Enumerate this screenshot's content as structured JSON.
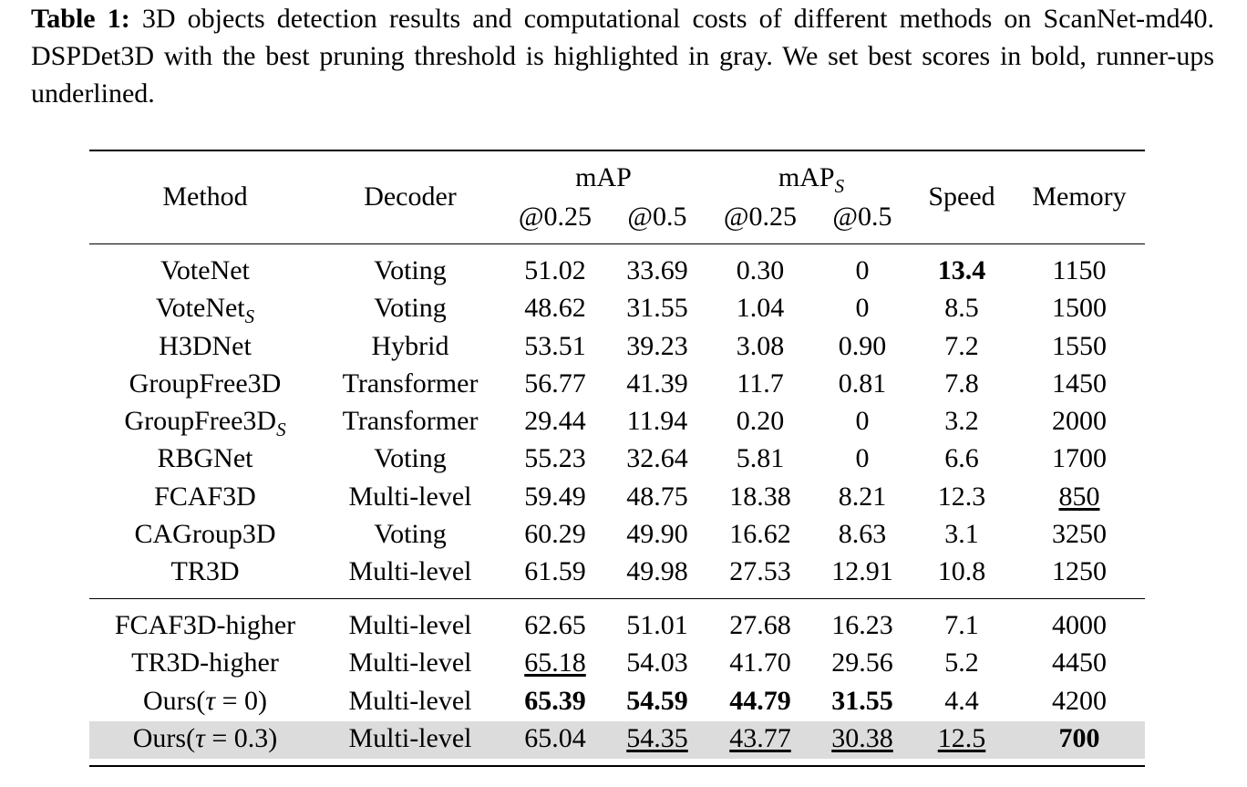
{
  "caption": {
    "label": "Table 1:",
    "text": " 3D objects detection results and computational costs of different methods on ScanNet-md40. DSPDet3D with the best pruning threshold is highlighted in gray. We set best scores in bold, runner-ups underlined."
  },
  "table": {
    "headers": {
      "method": "Method",
      "decoder": "Decoder",
      "map_group": "mAP",
      "maps_group": "mAP",
      "maps_sub": "S",
      "iou_025": "@0.25",
      "iou_05": "@0.5",
      "speed": "Speed",
      "memory": "Memory"
    },
    "rows": [
      {
        "method": "VoteNet",
        "method_sub": "",
        "decoder": "Voting",
        "map25": "51.02",
        "map5": "33.69",
        "maps25": "0.30",
        "maps5": "0",
        "speed": "13.4",
        "memory": "1150"
      },
      {
        "method": "VoteNet",
        "method_sub": "S",
        "decoder": "Voting",
        "map25": "48.62",
        "map5": "31.55",
        "maps25": "1.04",
        "maps5": "0",
        "speed": "8.5",
        "memory": "1500"
      },
      {
        "method": "H3DNet",
        "method_sub": "",
        "decoder": "Hybrid",
        "map25": "53.51",
        "map5": "39.23",
        "maps25": "3.08",
        "maps5": "0.90",
        "speed": "7.2",
        "memory": "1550"
      },
      {
        "method": "GroupFree3D",
        "method_sub": "",
        "decoder": "Transformer",
        "map25": "56.77",
        "map5": "41.39",
        "maps25": "11.7",
        "maps5": "0.81",
        "speed": "7.8",
        "memory": "1450"
      },
      {
        "method": "GroupFree3D",
        "method_sub": "S",
        "decoder": "Transformer",
        "map25": "29.44",
        "map5": "11.94",
        "maps25": "0.20",
        "maps5": "0",
        "speed": "3.2",
        "memory": "2000"
      },
      {
        "method": "RBGNet",
        "method_sub": "",
        "decoder": "Voting",
        "map25": "55.23",
        "map5": "32.64",
        "maps25": "5.81",
        "maps5": "0",
        "speed": "6.6",
        "memory": "1700"
      },
      {
        "method": "FCAF3D",
        "method_sub": "",
        "decoder": "Multi-level",
        "map25": "59.49",
        "map5": "48.75",
        "maps25": "18.38",
        "maps5": "8.21",
        "speed": "12.3",
        "memory": "850"
      },
      {
        "method": "CAGroup3D",
        "method_sub": "",
        "decoder": "Voting",
        "map25": "60.29",
        "map5": "49.90",
        "maps25": "16.62",
        "maps5": "8.63",
        "speed": "3.1",
        "memory": "3250"
      },
      {
        "method": "TR3D",
        "method_sub": "",
        "decoder": "Multi-level",
        "map25": "61.59",
        "map5": "49.98",
        "maps25": "27.53",
        "maps5": "12.91",
        "speed": "10.8",
        "memory": "1250"
      },
      {
        "method": "FCAF3D-higher",
        "method_sub": "",
        "decoder": "Multi-level",
        "map25": "62.65",
        "map5": "51.01",
        "maps25": "27.68",
        "maps5": "16.23",
        "speed": "7.1",
        "memory": "4000"
      },
      {
        "method": "TR3D-higher",
        "method_sub": "",
        "decoder": "Multi-level",
        "map25": "65.18",
        "map5": "54.03",
        "maps25": "41.70",
        "maps5": "29.56",
        "speed": "5.2",
        "memory": "4450"
      },
      {
        "method": "Ours(",
        "method_tau": "τ",
        "method_rest": " = 0)",
        "decoder": "Multi-level",
        "map25": "65.39",
        "map5": "54.59",
        "maps25": "44.79",
        "maps5": "31.55",
        "speed": "4.4",
        "memory": "4200"
      },
      {
        "method": "Ours(",
        "method_tau": "τ",
        "method_rest": " = 0.3)",
        "decoder": "Multi-level",
        "map25": "65.04",
        "map5": "54.35",
        "maps25": "43.77",
        "maps5": "30.38",
        "speed": "12.5",
        "memory": "700"
      }
    ]
  }
}
